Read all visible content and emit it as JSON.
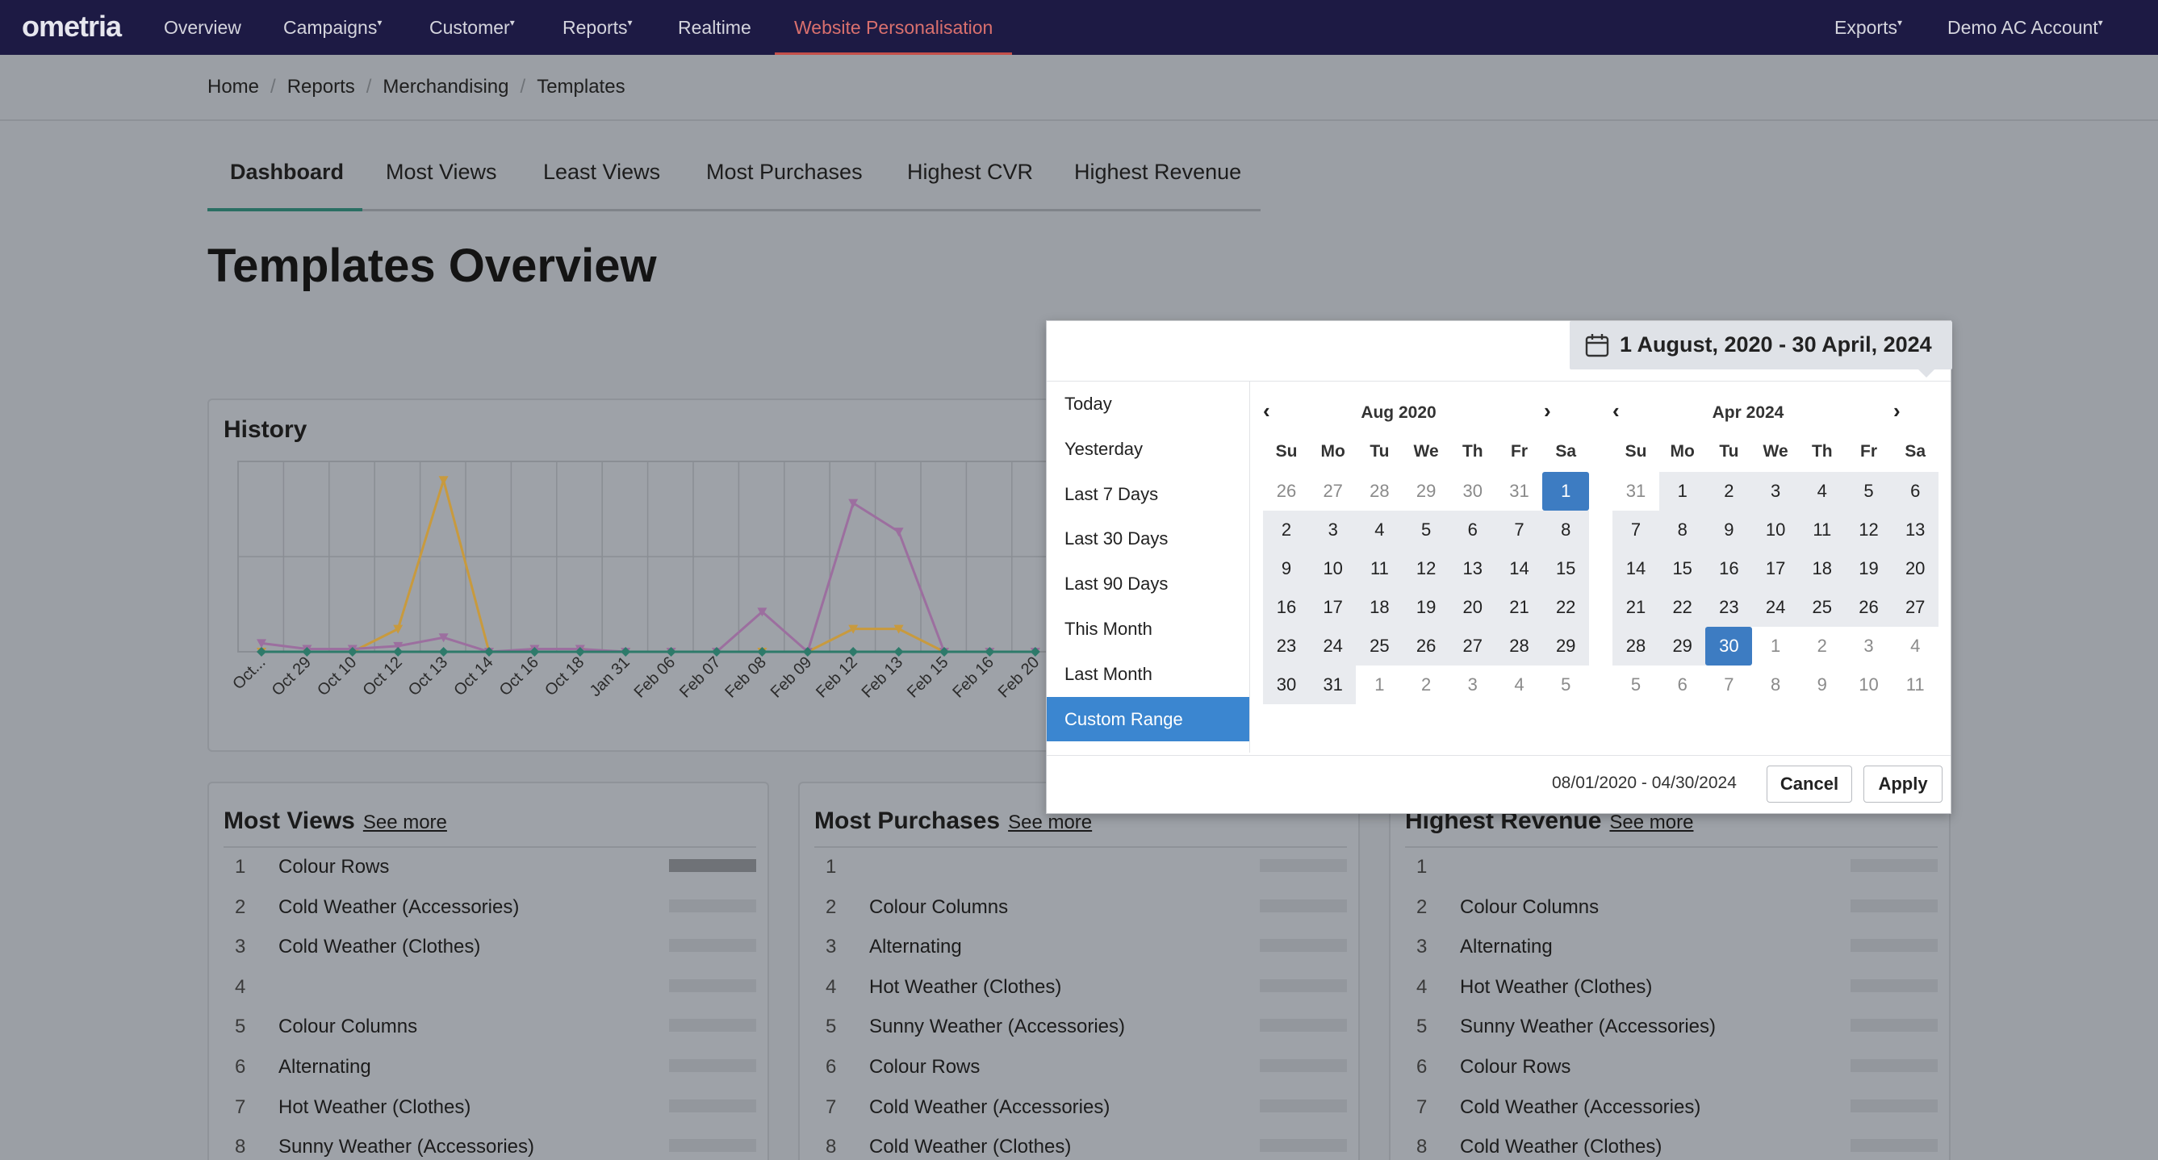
{
  "app": {
    "logo": "ometria"
  },
  "nav": {
    "left": [
      {
        "label": "Overview",
        "caret": false,
        "active": false
      },
      {
        "label": "Campaigns",
        "caret": true,
        "active": false
      },
      {
        "label": "Customer",
        "caret": true,
        "active": false
      },
      {
        "label": "Reports",
        "caret": true,
        "active": false
      },
      {
        "label": "Realtime",
        "caret": false,
        "active": false
      },
      {
        "label": "Website Personalisation",
        "caret": false,
        "active": true
      }
    ],
    "right": [
      {
        "label": "Exports",
        "caret": true
      },
      {
        "label": "Demo AC Account",
        "caret": true
      }
    ]
  },
  "breadcrumb": [
    "Home",
    "Reports",
    "Merchandising",
    "Templates"
  ],
  "tabs": [
    "Dashboard",
    "Most Views",
    "Least Views",
    "Most Purchases",
    "Highest CVR",
    "Highest Revenue"
  ],
  "page_title": "Templates Overview",
  "history": {
    "title": "History",
    "x_labels": [
      "Oct...",
      "Oct 29",
      "Oct 10",
      "Oct 12",
      "Oct 13",
      "Oct 14",
      "Oct 16",
      "Oct 18",
      "Jan 31",
      "Feb 06",
      "Feb 07",
      "Feb 08",
      "Feb 09",
      "Feb 12",
      "Feb 13",
      "Feb 15",
      "Feb 16",
      "Feb 20"
    ],
    "colors": {
      "orange": "#c89a3e",
      "purple": "#9c6f9f",
      "teal": "#2e7a6a"
    }
  },
  "chart_data": {
    "type": "line",
    "title": "History",
    "categories": [
      "Oct...",
      "Oct 29",
      "Oct 10",
      "Oct 12",
      "Oct 13",
      "Oct 14",
      "Oct 16",
      "Oct 18",
      "Jan 31",
      "Feb 06",
      "Feb 07",
      "Feb 08",
      "Feb 09",
      "Feb 12",
      "Feb 13",
      "Feb 15",
      "Feb 16",
      "Feb 20"
    ],
    "series": [
      {
        "values": [
          0,
          0,
          0,
          4,
          30,
          0,
          0,
          0,
          0,
          0,
          0,
          0,
          0,
          4,
          4,
          0,
          0,
          0
        ]
      },
      {
        "values": [
          1.5,
          0.5,
          0.5,
          1,
          2.5,
          0,
          0.5,
          0.5,
          0,
          0,
          0,
          7,
          0,
          26,
          21,
          0,
          0,
          0
        ]
      },
      {
        "values": [
          0,
          0,
          0,
          0,
          0,
          0,
          0,
          0,
          0,
          0,
          0,
          0,
          0,
          0,
          0,
          0,
          0,
          0
        ]
      }
    ],
    "ylim": [
      0,
      33
    ],
    "grid": true
  },
  "lists": [
    {
      "title": "Most Views",
      "see_more": "See more",
      "items": [
        {
          "n": "1",
          "name": "Colour Rows"
        },
        {
          "n": "2",
          "name": "Cold Weather (Accessories)"
        },
        {
          "n": "3",
          "name": "Cold Weather (Clothes)"
        },
        {
          "n": "4",
          "name": ""
        },
        {
          "n": "5",
          "name": "Colour Columns"
        },
        {
          "n": "6",
          "name": "Alternating"
        },
        {
          "n": "7",
          "name": "Hot Weather (Clothes)"
        },
        {
          "n": "8",
          "name": "Sunny Weather (Accessories)"
        }
      ]
    },
    {
      "title": "Most Purchases",
      "see_more": "See more",
      "items": [
        {
          "n": "1",
          "name": ""
        },
        {
          "n": "2",
          "name": "Colour Columns"
        },
        {
          "n": "3",
          "name": "Alternating"
        },
        {
          "n": "4",
          "name": "Hot Weather (Clothes)"
        },
        {
          "n": "5",
          "name": "Sunny Weather (Accessories)"
        },
        {
          "n": "6",
          "name": "Colour Rows"
        },
        {
          "n": "7",
          "name": "Cold Weather (Accessories)"
        },
        {
          "n": "8",
          "name": "Cold Weather (Clothes)"
        }
      ]
    },
    {
      "title": "Highest Revenue",
      "see_more": "See more",
      "items": [
        {
          "n": "1",
          "name": ""
        },
        {
          "n": "2",
          "name": "Colour Columns"
        },
        {
          "n": "3",
          "name": "Alternating"
        },
        {
          "n": "4",
          "name": "Hot Weather (Clothes)"
        },
        {
          "n": "5",
          "name": "Sunny Weather (Accessories)"
        },
        {
          "n": "6",
          "name": "Colour Rows"
        },
        {
          "n": "7",
          "name": "Cold Weather (Accessories)"
        },
        {
          "n": "8",
          "name": "Cold Weather (Clothes)"
        }
      ]
    }
  ],
  "datepicker": {
    "chip_label": "1 August, 2020 - 30 April, 2024",
    "ranges": [
      "Today",
      "Yesterday",
      "Last 7 Days",
      "Last 30 Days",
      "Last 90 Days",
      "This Month",
      "Last Month",
      "Custom Range"
    ],
    "active_range": "Custom Range",
    "dow": [
      "Su",
      "Mo",
      "Tu",
      "We",
      "Th",
      "Fr",
      "Sa"
    ],
    "left": {
      "title": "Aug 2020",
      "days": [
        "26",
        "27",
        "28",
        "29",
        "30",
        "31",
        "1",
        "2",
        "3",
        "4",
        "5",
        "6",
        "7",
        "8",
        "9",
        "10",
        "11",
        "12",
        "13",
        "14",
        "15",
        "16",
        "17",
        "18",
        "19",
        "20",
        "21",
        "22",
        "23",
        "24",
        "25",
        "26",
        "27",
        "28",
        "29",
        "30",
        "31",
        "1",
        "2",
        "3",
        "4",
        "5"
      ],
      "off": [
        0,
        1,
        2,
        3,
        4,
        5,
        37,
        38,
        39,
        40,
        41
      ],
      "selected": [
        6
      ]
    },
    "right": {
      "title": "Apr 2024",
      "days": [
        "31",
        "1",
        "2",
        "3",
        "4",
        "5",
        "6",
        "7",
        "8",
        "9",
        "10",
        "11",
        "12",
        "13",
        "14",
        "15",
        "16",
        "17",
        "18",
        "19",
        "20",
        "21",
        "22",
        "23",
        "24",
        "25",
        "26",
        "27",
        "28",
        "29",
        "30",
        "1",
        "2",
        "3",
        "4",
        "5",
        "6",
        "7",
        "8",
        "9",
        "10",
        "11"
      ],
      "off": [
        0,
        31,
        32,
        33,
        34,
        35,
        36,
        37,
        38,
        39,
        40,
        41
      ],
      "selected": [
        30
      ]
    },
    "range_text": "08/01/2020 - 04/30/2024",
    "cancel": "Cancel",
    "apply": "Apply"
  }
}
